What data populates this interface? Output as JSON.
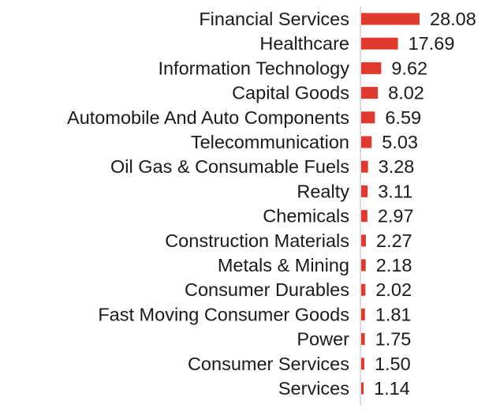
{
  "chart_data": {
    "type": "bar",
    "orientation": "horizontal",
    "title": "",
    "xlabel": "",
    "ylabel": "",
    "categories": [
      "Financial Services",
      "Healthcare",
      "Information Technology",
      "Capital Goods",
      "Automobile And Auto Components",
      "Telecommunication",
      "Oil Gas & Consumable Fuels",
      "Realty",
      "Chemicals",
      "Construction Materials",
      "Metals & Mining",
      "Consumer Durables",
      "Fast Moving Consumer Goods",
      "Power",
      "Consumer Services",
      "Services"
    ],
    "values": [
      28.08,
      17.69,
      9.62,
      8.02,
      6.59,
      5.03,
      3.28,
      3.11,
      2.97,
      2.27,
      2.18,
      2.02,
      1.81,
      1.75,
      1.5,
      1.14
    ],
    "value_labels": [
      "28.08",
      "17.69",
      "9.62",
      "8.02",
      "6.59",
      "5.03",
      "3.28",
      "3.11",
      "2.97",
      "2.27",
      "2.18",
      "2.02",
      "1.81",
      "1.75",
      "1.50",
      "1.14"
    ],
    "xlim": [
      0,
      28.08
    ],
    "grid": false,
    "legend": "none",
    "colors": {
      "bar": "#e03a2e",
      "axis": "#bbbbbb",
      "text": "#1a1a1a"
    }
  }
}
